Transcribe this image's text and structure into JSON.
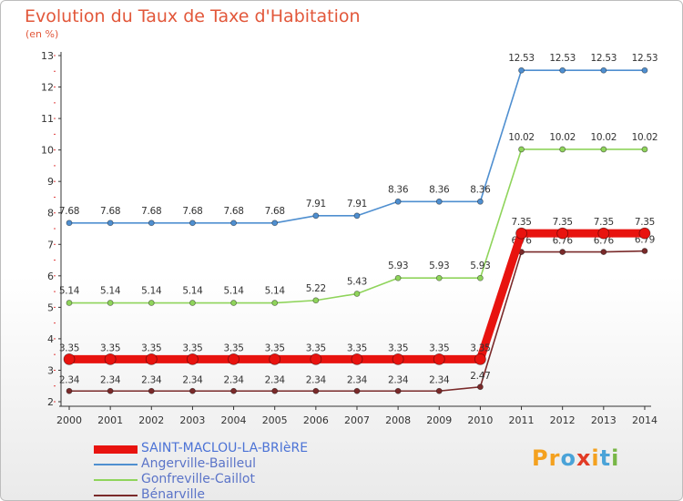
{
  "header": {
    "title": "Evolution du Taux de Taxe d'Habitation",
    "unit": "(en %)"
  },
  "logo": {
    "letters": [
      "P",
      "r",
      "o",
      "x",
      "i",
      "t",
      "i"
    ],
    "colors": [
      "#f4a11f",
      "#f4a11f",
      "#4aa3d8",
      "#e23b25",
      "#f4a11f",
      "#4aa3d8",
      "#78b646"
    ]
  },
  "chart_data": {
    "type": "line",
    "title": "Evolution du Taux de Taxe d'Habitation",
    "subtitle": "(en %)",
    "xlabel": "",
    "ylabel": "(en %)",
    "x": [
      "2000",
      "2001",
      "2002",
      "2003",
      "2004",
      "2005",
      "2006",
      "2007",
      "2008",
      "2009",
      "2010",
      "2011",
      "2012",
      "2013",
      "2014"
    ],
    "ylim": [
      2,
      13
    ],
    "yticks": [
      "2",
      "3",
      "4",
      "5",
      "6",
      "7",
      "8",
      "9",
      "10",
      "11",
      "12",
      "13"
    ],
    "grid": false,
    "legend": "bottom-left",
    "series": [
      {
        "name": "SAINT-MACLOU-LA-BRIèRE",
        "color": "#e8130f",
        "values": [
          3.35,
          3.35,
          3.35,
          3.35,
          3.35,
          3.35,
          3.35,
          3.35,
          3.35,
          3.35,
          3.35,
          7.35,
          7.35,
          7.35,
          7.35
        ],
        "labels": [
          "3.35",
          "3.35",
          "3.35",
          "3.35",
          "3.35",
          "3.35",
          "3.35",
          "3.35",
          "3.35",
          "3.35",
          "3.35",
          "7.35",
          "7.35",
          "7.35",
          "7.35"
        ]
      },
      {
        "name": "Angerville-Bailleul",
        "color": "#4f8fd0",
        "values": [
          7.68,
          7.68,
          7.68,
          7.68,
          7.68,
          7.68,
          7.91,
          7.91,
          8.36,
          8.36,
          8.36,
          12.53,
          12.53,
          12.53,
          12.53
        ],
        "labels": [
          "7.68",
          "7.68",
          "7.68",
          "7.68",
          "7.68",
          "7.68",
          "7.91",
          "7.91",
          "8.36",
          "8.36",
          "8.36",
          "12.53",
          "12.53",
          "12.53",
          "12.53"
        ]
      },
      {
        "name": "Gonfreville-Caillot",
        "color": "#8fd45b",
        "values": [
          5.14,
          5.14,
          5.14,
          5.14,
          5.14,
          5.14,
          5.22,
          5.43,
          5.93,
          5.93,
          5.93,
          10.02,
          10.02,
          10.02,
          10.02
        ],
        "labels": [
          "5.14",
          "5.14",
          "5.14",
          "5.14",
          "5.14",
          "5.14",
          "5.22",
          "5.43",
          "5.93",
          "5.93",
          "5.93",
          "10.02",
          "10.02",
          "10.02",
          "10.02"
        ]
      },
      {
        "name": "Bénarville",
        "color": "#7a2a2a",
        "values": [
          2.34,
          2.34,
          2.34,
          2.34,
          2.34,
          2.34,
          2.34,
          2.34,
          2.34,
          2.34,
          2.47,
          6.76,
          6.76,
          6.76,
          6.79
        ],
        "labels": [
          "2.34",
          "2.34",
          "2.34",
          "2.34",
          "2.34",
          "2.34",
          "2.34",
          "2.34",
          "2.34",
          "2.34",
          "2.47",
          "6.76",
          "6.76",
          "6.76",
          "6.79"
        ]
      }
    ]
  }
}
